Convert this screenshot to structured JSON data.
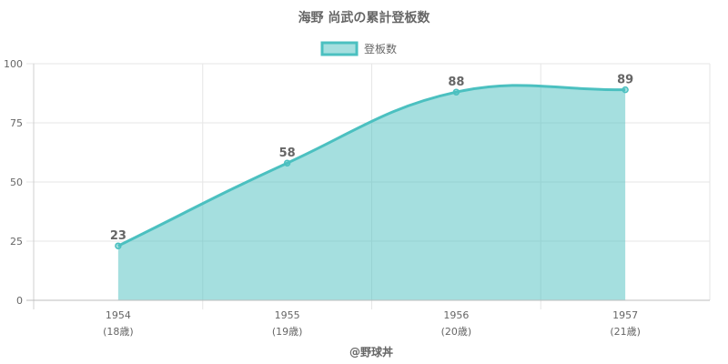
{
  "chart_data": {
    "type": "area",
    "title": "海野 尚武の累計登板数",
    "legend": {
      "position": "top",
      "label": "登板数"
    },
    "categories": [
      "1954",
      "1955",
      "1956",
      "1957"
    ],
    "category_sublabels": [
      "(18歳)",
      "(19歳)",
      "(20歳)",
      "(21歳)"
    ],
    "series": [
      {
        "name": "登板数",
        "values": [
          23,
          58,
          88,
          89
        ],
        "color": "#4bc0c0",
        "fill": "rgba(75,192,192,0.5)"
      }
    ],
    "data_labels": [
      "23",
      "58",
      "88",
      "89"
    ],
    "ylim": [
      0,
      100
    ],
    "yticks": [
      0,
      25,
      50,
      75,
      100
    ],
    "ytick_labels": [
      "0",
      "25",
      "50",
      "75",
      "100"
    ],
    "grid": true,
    "xlabel": "",
    "ylabel": ""
  },
  "footer": {
    "credit": "@野球丼"
  }
}
